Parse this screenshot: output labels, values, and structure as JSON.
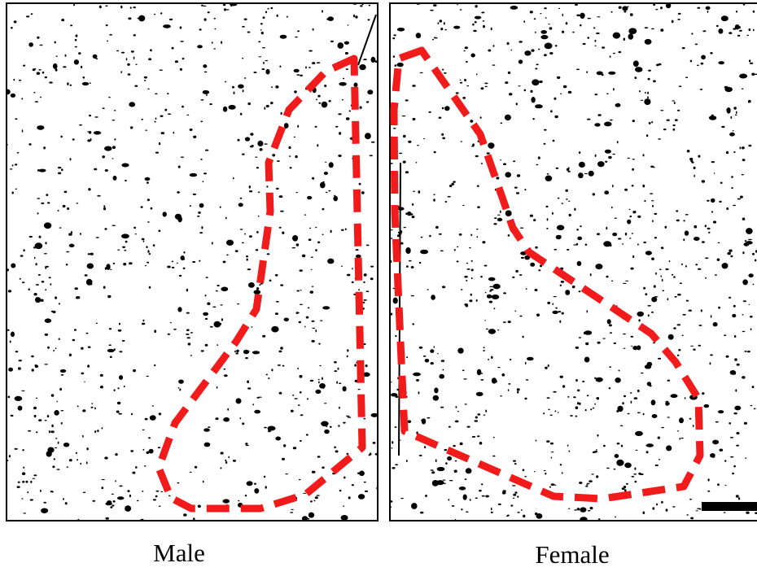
{
  "panels": [
    {
      "label": "Male"
    },
    {
      "label": "Female"
    }
  ]
}
